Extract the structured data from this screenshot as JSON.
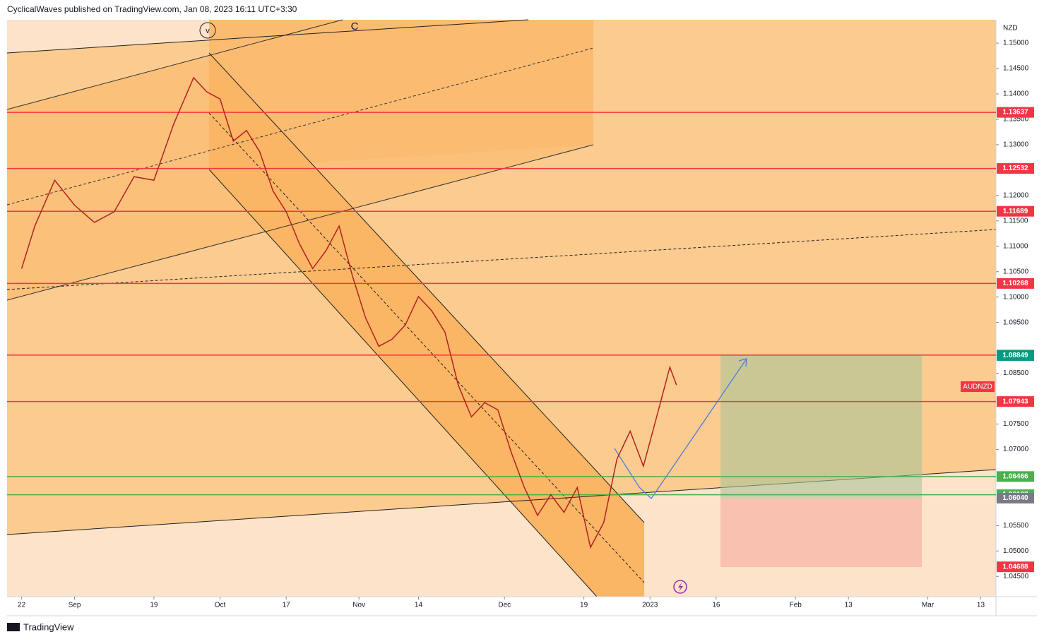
{
  "header": {
    "publisher": "CyclicalWaves published on TradingView.com, Jan 08, 2023 16:11 UTC+3:30",
    "brand": "TradingView"
  },
  "chart_data": {
    "type": "line",
    "currency": "NZD",
    "symbol": "AUDNZD",
    "wave_labels": [
      "v",
      "C"
    ],
    "series": [
      {
        "name": "AUDNZD",
        "color": "#b22222",
        "x": [
          0,
          2,
          5,
          8,
          11,
          14,
          17,
          20,
          23,
          26,
          28,
          30,
          32,
          34,
          36,
          38,
          40,
          42,
          44,
          46,
          48,
          50,
          52,
          54,
          56,
          58,
          60,
          62,
          64,
          66,
          68,
          70,
          72,
          74,
          76,
          78,
          80,
          82,
          84,
          86,
          88,
          90,
          92,
          94,
          96,
          98,
          99
        ],
        "values": [
          1.1056,
          1.114,
          1.123,
          1.1181,
          1.1147,
          1.1168,
          1.1237,
          1.123,
          1.1341,
          1.1432,
          1.1404,
          1.139,
          1.1307,
          1.1328,
          1.1286,
          1.1209,
          1.1168,
          1.1105,
          1.1056,
          1.1091,
          1.114,
          1.1042,
          1.0959,
          1.0903,
          1.0917,
          1.0945,
          1.1001,
          1.0973,
          1.0931,
          1.0827,
          1.0764,
          1.0792,
          1.0778,
          1.0695,
          1.0625,
          1.057,
          1.0611,
          1.0576,
          1.0625,
          1.0507,
          1.0556,
          1.0681,
          1.0736,
          1.0667,
          1.0764,
          1.0862,
          1.0827
        ]
      }
    ],
    "xlim": [
      -2.2,
      147.3
    ],
    "xticks": [
      {
        "value": 0,
        "label": "22"
      },
      {
        "value": 8,
        "label": "Sep"
      },
      {
        "value": 20,
        "label": "19"
      },
      {
        "value": 30,
        "label": "Oct"
      },
      {
        "value": 40,
        "label": "17"
      },
      {
        "value": 51,
        "label": "Nov"
      },
      {
        "value": 60,
        "label": "14"
      },
      {
        "value": 73,
        "label": "Dec"
      },
      {
        "value": 85,
        "label": "19"
      },
      {
        "value": 95,
        "label": "2023"
      },
      {
        "value": 105,
        "label": "16"
      },
      {
        "value": 117,
        "label": "Feb"
      },
      {
        "value": 125,
        "label": "13"
      },
      {
        "value": 137,
        "label": "Mar"
      },
      {
        "value": 145,
        "label": "13"
      }
    ],
    "ylim": [
      1.041,
      1.1546
    ],
    "yticks": [
      {
        "value": 1.15,
        "label": "1.15000"
      },
      {
        "value": 1.145,
        "label": "1.14500"
      },
      {
        "value": 1.14,
        "label": "1.14000"
      },
      {
        "value": 1.135,
        "label": "1.13500"
      },
      {
        "value": 1.13,
        "label": "1.13000"
      },
      {
        "value": 1.12,
        "label": "1.12000"
      },
      {
        "value": 1.115,
        "label": "1.11500"
      },
      {
        "value": 1.11,
        "label": "1.11000"
      },
      {
        "value": 1.105,
        "label": "1.10500"
      },
      {
        "value": 1.1,
        "label": "1.10000"
      },
      {
        "value": 1.095,
        "label": "1.09500"
      },
      {
        "value": 1.085,
        "label": "1.08500"
      },
      {
        "value": 1.075,
        "label": "1.07500"
      },
      {
        "value": 1.07,
        "label": "1.07000"
      },
      {
        "value": 1.055,
        "label": "1.05500"
      },
      {
        "value": 1.05,
        "label": "1.05000"
      },
      {
        "value": 1.045,
        "label": "1.04500"
      }
    ],
    "levels": [
      {
        "value": 1.13637,
        "color": "#f23645"
      },
      {
        "value": 1.12532,
        "color": "#f23645"
      },
      {
        "value": 1.11689,
        "color": "#f23645"
      },
      {
        "value": 1.10268,
        "color": "#f23645"
      },
      {
        "value": 1.08857,
        "color": "#f23645"
      },
      {
        "value": 1.07943,
        "color": "#f23645"
      },
      {
        "value": 1.06466,
        "color": "#4caf50"
      },
      {
        "value": 1.06108,
        "color": "#4caf50"
      }
    ],
    "price_labels": [
      {
        "value": 1.08849,
        "color": "#089981"
      },
      {
        "value": 1.0604,
        "label": "1.06040",
        "color": "#787b86"
      },
      {
        "value": 1.04688,
        "color": "#f23645"
      }
    ]
  }
}
